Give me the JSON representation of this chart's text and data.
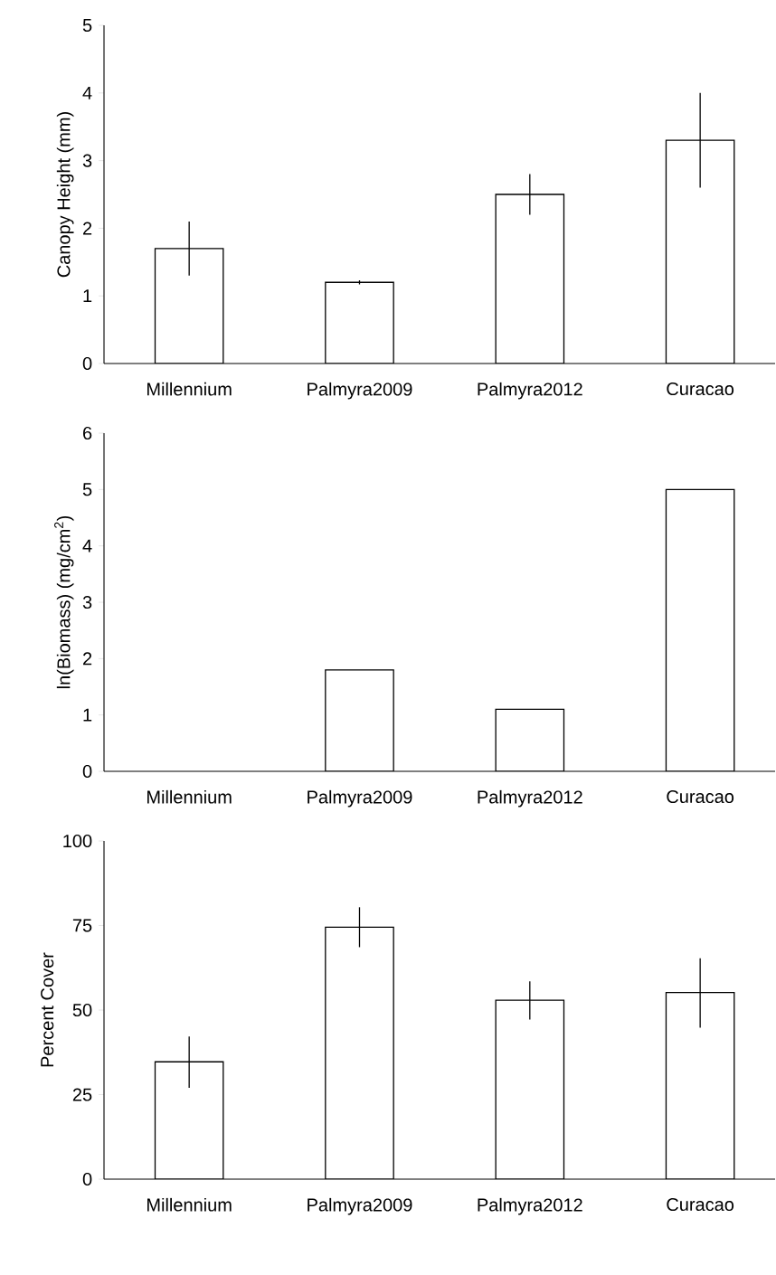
{
  "chart_data": [
    {
      "type": "bar",
      "ylabel": "Canopy Height (mm)",
      "categories": [
        "Millennium",
        "Palmyra2009",
        "Palmyra2012",
        "Curacao"
      ],
      "values": [
        1.7,
        1.2,
        2.5,
        3.3
      ],
      "errors": [
        [
          1.3,
          2.1
        ],
        [
          1.17,
          1.23
        ],
        [
          2.2,
          2.8
        ],
        [
          2.6,
          4.0
        ]
      ],
      "color": "#ffffff",
      "ylim": [
        0,
        5
      ],
      "yticks": [
        0,
        1,
        2,
        3,
        4,
        5
      ]
    },
    {
      "type": "bar",
      "ylabel": "ln(Biomass) (mg/cm$^{2}$)",
      "categories": [
        "Millennium",
        "Palmyra2009",
        "Palmyra2012",
        "Curacao"
      ],
      "values": [
        null,
        1.8,
        1.1,
        5.0
      ],
      "color": "#ffffff",
      "ylim": [
        0,
        6
      ],
      "yticks": [
        0,
        1,
        2,
        3,
        4,
        5,
        6
      ]
    },
    {
      "type": "bar",
      "ylabel": "Percent Cover",
      "categories": [
        "Millennium",
        "Palmyra2009",
        "Palmyra2012",
        "Curacao"
      ],
      "values": [
        34.7,
        74.5,
        52.9,
        55.2
      ],
      "errors": [
        [
          27,
          42.2
        ],
        [
          68.6,
          80.4
        ],
        [
          47.2,
          58.5
        ],
        [
          44.8,
          65.3
        ]
      ],
      "color": "#ffffff",
      "ylim": [
        0,
        100
      ],
      "yticks": [
        0,
        25,
        50,
        75,
        100
      ]
    }
  ]
}
